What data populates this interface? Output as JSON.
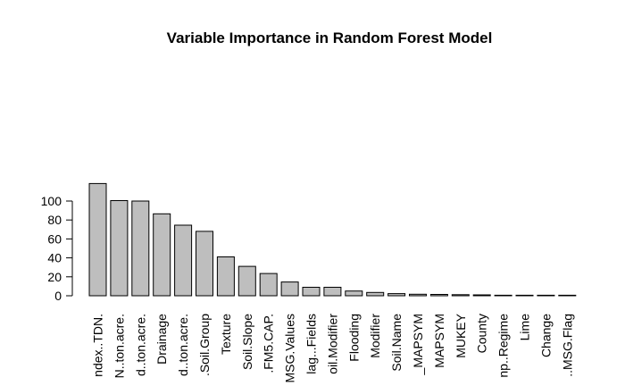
{
  "chart_data": {
    "type": "bar",
    "title": "Variable Importance in Random Forest Model",
    "xlabel": "",
    "ylabel": "",
    "ylim": [
      0,
      120
    ],
    "yticks": [
      0,
      20,
      40,
      60,
      80,
      100
    ],
    "grid": false,
    "legend": "none",
    "bar_fill": "#bebebe",
    "bar_stroke": "#000000",
    "categories": [
      "ndex..TDN.",
      "N..ton.acre.",
      "d..ton.acre.",
      "Drainage",
      "d..ton.acre.",
      ".Soil.Group",
      "Texture",
      "Soil.Slope",
      ".FM5.CAP.",
      "MSG.Values",
      "lag...Fields",
      "oil.Modifier",
      "Flooding",
      "Modifier",
      "Soil.Name",
      "_MAPSYM",
      "MAPSYM",
      "MUKEY",
      "County",
      "np..Regime",
      "Lime",
      "Change",
      "..MSG.Flag"
    ],
    "values": [
      118.5,
      100.5,
      100,
      86.5,
      74.5,
      68,
      41,
      31,
      23.5,
      14.5,
      9,
      9,
      5,
      3.5,
      2.3,
      1.6,
      1.4,
      1.1,
      0.9,
      0.5,
      0.2,
      0.1,
      0.1
    ]
  }
}
